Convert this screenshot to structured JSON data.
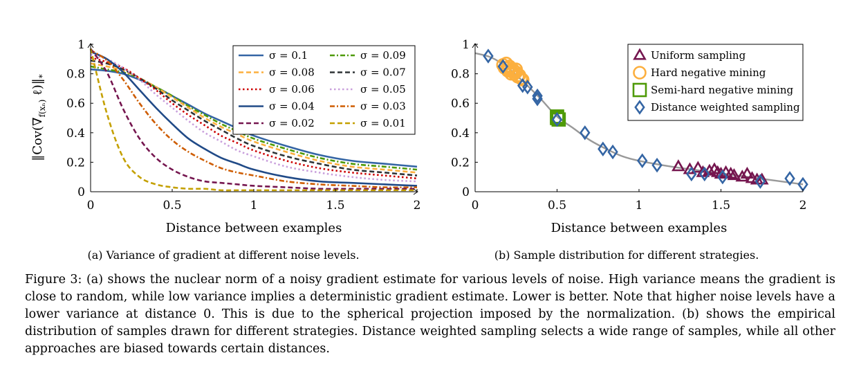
{
  "figure": {
    "caption": "Figure 3: (a) shows the nuclear norm of a noisy gradient estimate for various levels of noise. High variance means the gradient is close to random, while low variance implies a deterministic gradient estimate. Lower is better. Note that higher noise levels have a lower variance at distance 0. This is due to the spherical projection imposed by the normalization. (b) shows the empirical distribution of samples drawn for different strategies. Distance weighted sampling selects a wide range of samples, while all other approaches are biased towards certain distances."
  },
  "chart_data": [
    {
      "type": "line",
      "subcaption": "(a) Variance of gradient at different noise levels.",
      "xlabel": "Distance between examples",
      "ylabel": "||Cov(∇f(xₙ) ℓ)||*",
      "xlim": [
        0,
        2
      ],
      "ylim": [
        0,
        1
      ],
      "xticks": [
        "0",
        "0.5",
        "1",
        "1.5",
        "2"
      ],
      "yticks": [
        "0",
        "0.2",
        "0.4",
        "0.6",
        "0.8",
        "1"
      ],
      "legend_position": "top-right",
      "x": [
        0,
        0.1,
        0.2,
        0.3,
        0.4,
        0.5,
        0.6,
        0.7,
        0.8,
        0.9,
        1.0,
        1.2,
        1.4,
        1.6,
        1.8,
        2.0
      ],
      "series": [
        {
          "name": "σ = 0.1",
          "color": "#3465a4",
          "dash": "solid",
          "values": [
            0.83,
            0.82,
            0.8,
            0.76,
            0.71,
            0.65,
            0.59,
            0.53,
            0.48,
            0.43,
            0.38,
            0.31,
            0.25,
            0.21,
            0.19,
            0.17
          ]
        },
        {
          "name": "σ = 0.09",
          "color": "#4e9a06",
          "dash": "dashdot",
          "values": [
            0.85,
            0.83,
            0.81,
            0.77,
            0.71,
            0.65,
            0.58,
            0.52,
            0.46,
            0.41,
            0.36,
            0.29,
            0.23,
            0.19,
            0.17,
            0.15
          ]
        },
        {
          "name": "σ = 0.08",
          "color": "#fcaf3e",
          "dash": "dashed",
          "values": [
            0.87,
            0.85,
            0.82,
            0.77,
            0.71,
            0.64,
            0.57,
            0.5,
            0.44,
            0.39,
            0.34,
            0.27,
            0.21,
            0.17,
            0.15,
            0.13
          ]
        },
        {
          "name": "σ = 0.07",
          "color": "#2e3436",
          "dash": "dashed",
          "values": [
            0.89,
            0.87,
            0.83,
            0.77,
            0.7,
            0.62,
            0.55,
            0.48,
            0.42,
            0.36,
            0.31,
            0.24,
            0.19,
            0.15,
            0.13,
            0.11
          ]
        },
        {
          "name": "σ = 0.06",
          "color": "#cc0000",
          "dash": "dotted",
          "values": [
            0.91,
            0.88,
            0.84,
            0.77,
            0.69,
            0.6,
            0.52,
            0.45,
            0.38,
            0.33,
            0.28,
            0.21,
            0.16,
            0.13,
            0.11,
            0.09
          ]
        },
        {
          "name": "σ = 0.05",
          "color": "#c9a0dc",
          "dash": "dotted",
          "values": [
            0.93,
            0.9,
            0.84,
            0.76,
            0.66,
            0.57,
            0.48,
            0.4,
            0.34,
            0.28,
            0.24,
            0.17,
            0.13,
            0.1,
            0.08,
            0.07
          ]
        },
        {
          "name": "σ = 0.04",
          "color": "#204a87",
          "dash": "solid",
          "values": [
            0.95,
            0.9,
            0.81,
            0.69,
            0.57,
            0.46,
            0.36,
            0.29,
            0.23,
            0.19,
            0.15,
            0.1,
            0.07,
            0.06,
            0.05,
            0.04
          ]
        },
        {
          "name": "σ = 0.03",
          "color": "#ce5c00",
          "dash": "dashdot",
          "values": [
            0.96,
            0.89,
            0.76,
            0.6,
            0.46,
            0.35,
            0.27,
            0.21,
            0.16,
            0.13,
            0.11,
            0.07,
            0.05,
            0.04,
            0.03,
            0.03
          ]
        },
        {
          "name": "σ = 0.02",
          "color": "#75164f",
          "dash": "dashed",
          "values": [
            0.97,
            0.81,
            0.56,
            0.36,
            0.23,
            0.15,
            0.1,
            0.07,
            0.06,
            0.05,
            0.04,
            0.03,
            0.02,
            0.02,
            0.02,
            0.02
          ]
        },
        {
          "name": "σ = 0.01",
          "color": "#c4a000",
          "dash": "dashed",
          "values": [
            0.97,
            0.53,
            0.23,
            0.1,
            0.05,
            0.03,
            0.02,
            0.02,
            0.01,
            0.01,
            0.01,
            0.01,
            0.01,
            0.01,
            0.01,
            0.01
          ]
        }
      ]
    },
    {
      "type": "scatter",
      "subcaption": "(b) Sample distribution for different strategies.",
      "xlabel": "Distance between examples",
      "xlim": [
        0,
        2
      ],
      "ylim": [
        0,
        1
      ],
      "xticks": [
        "0",
        "0.5",
        "1",
        "1.5",
        "2"
      ],
      "yticks": [
        "0",
        "0.2",
        "0.4",
        "0.6",
        "0.8",
        "1"
      ],
      "legend_position": "top-right",
      "curve": {
        "color": "#999999",
        "x": [
          0,
          0.1,
          0.2,
          0.3,
          0.4,
          0.5,
          0.6,
          0.7,
          0.8,
          0.9,
          1.0,
          1.2,
          1.4,
          1.6,
          1.8,
          2.0
        ],
        "y": [
          0.94,
          0.91,
          0.84,
          0.74,
          0.63,
          0.51,
          0.43,
          0.35,
          0.29,
          0.24,
          0.21,
          0.17,
          0.14,
          0.11,
          0.08,
          0.05
        ]
      },
      "series": [
        {
          "name": "Uniform sampling",
          "marker": "triangle",
          "color": "#75164f",
          "x": [
            1.24,
            1.31,
            1.36,
            1.39,
            1.43,
            1.46,
            1.48,
            1.5,
            1.53,
            1.56,
            1.58,
            1.63,
            1.66,
            1.69,
            1.72,
            1.75
          ],
          "y": [
            0.17,
            0.15,
            0.16,
            0.13,
            0.14,
            0.15,
            0.13,
            0.12,
            0.13,
            0.12,
            0.11,
            0.1,
            0.12,
            0.09,
            0.08,
            0.08
          ]
        },
        {
          "name": "Hard negative mining",
          "marker": "circle",
          "color": "#fcaf3e",
          "x": [
            0.17,
            0.19,
            0.2,
            0.21,
            0.22,
            0.23,
            0.24,
            0.25,
            0.26,
            0.27,
            0.28,
            0.29,
            0.18,
            0.22,
            0.25,
            0.2
          ],
          "y": [
            0.86,
            0.87,
            0.84,
            0.85,
            0.82,
            0.83,
            0.8,
            0.81,
            0.78,
            0.79,
            0.77,
            0.76,
            0.84,
            0.8,
            0.83,
            0.82
          ]
        },
        {
          "name": "Semi-hard negative mining",
          "marker": "square",
          "color": "#4e9a06",
          "x": [
            0.5,
            0.51,
            0.5
          ],
          "y": [
            0.51,
            0.49,
            0.5
          ]
        },
        {
          "name": "Distance weighted sampling",
          "marker": "diamond",
          "color": "#3465a4",
          "x": [
            0.08,
            0.17,
            0.29,
            0.32,
            0.38,
            0.38,
            0.5,
            0.67,
            0.78,
            0.84,
            1.02,
            1.11,
            1.32,
            1.4,
            1.51,
            1.74,
            1.92,
            2.0
          ],
          "y": [
            0.92,
            0.85,
            0.72,
            0.71,
            0.65,
            0.63,
            0.49,
            0.4,
            0.29,
            0.27,
            0.21,
            0.18,
            0.12,
            0.12,
            0.1,
            0.07,
            0.09,
            0.05
          ]
        }
      ]
    }
  ]
}
